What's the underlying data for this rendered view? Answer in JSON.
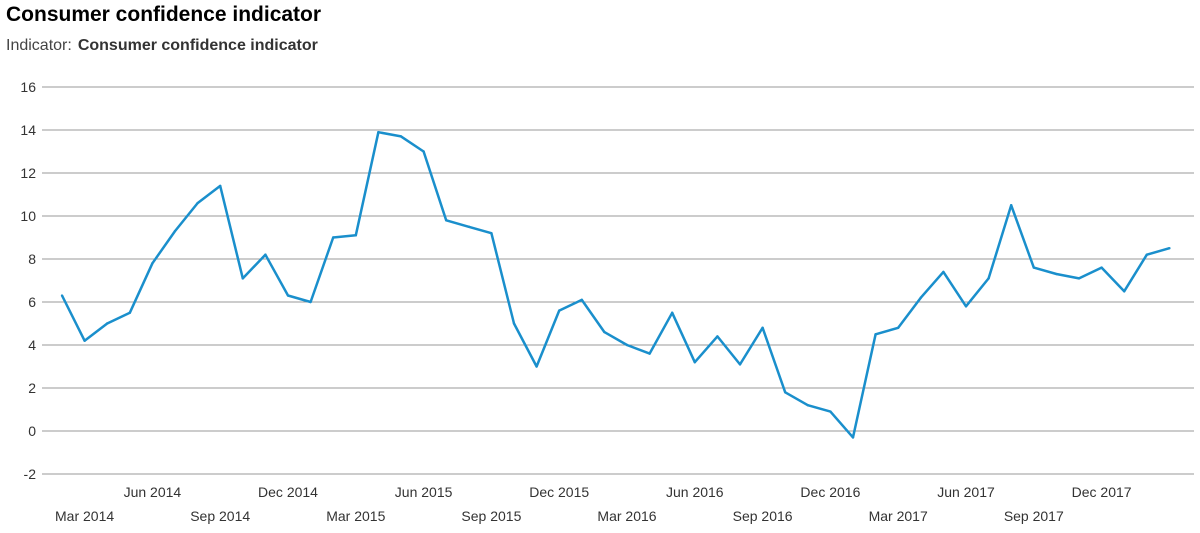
{
  "title": "Consumer confidence indicator",
  "subtitle": {
    "label": "Indicator:",
    "value": "Consumer confidence indicator"
  },
  "colors": {
    "line": "#1a8fcc",
    "grid": "#999999",
    "text": "#333333"
  },
  "chart_data": {
    "type": "line",
    "title": "Consumer confidence indicator",
    "xlabel": "",
    "ylabel": "",
    "ylim": [
      -2,
      16
    ],
    "yticks": [
      -2,
      0,
      2,
      4,
      6,
      8,
      10,
      12,
      14,
      16
    ],
    "grid": true,
    "x": [
      "2014-02",
      "2014-03",
      "2014-04",
      "2014-05",
      "2014-06",
      "2014-07",
      "2014-08",
      "2014-09",
      "2014-10",
      "2014-11",
      "2014-12",
      "2015-01",
      "2015-02",
      "2015-03",
      "2015-04",
      "2015-05",
      "2015-06",
      "2015-07",
      "2015-08",
      "2015-09",
      "2015-10",
      "2015-11",
      "2015-12",
      "2016-01",
      "2016-02",
      "2016-03",
      "2016-04",
      "2016-05",
      "2016-06",
      "2016-07",
      "2016-08",
      "2016-09",
      "2016-10",
      "2016-11",
      "2016-12",
      "2017-01",
      "2017-02",
      "2017-03",
      "2017-04",
      "2017-05",
      "2017-06",
      "2017-07",
      "2017-08",
      "2017-09",
      "2017-10",
      "2017-11",
      "2017-12",
      "2018-01",
      "2018-02",
      "2018-03"
    ],
    "series": [
      {
        "values": [
          6.3,
          4.2,
          5.0,
          5.5,
          7.8,
          9.3,
          10.6,
          11.4,
          7.1,
          8.2,
          6.3,
          6.0,
          9.0,
          9.1,
          13.9,
          13.7,
          13.0,
          9.8,
          9.5,
          9.2,
          5.0,
          3.0,
          5.6,
          6.1,
          4.6,
          4.0,
          3.6,
          5.5,
          3.2,
          4.4,
          3.1,
          4.8,
          1.8,
          1.2,
          0.9,
          -0.3,
          4.5,
          4.8,
          6.2,
          7.4,
          5.8,
          7.1,
          10.5,
          7.6,
          7.3,
          7.1,
          7.6,
          6.5,
          8.2,
          8.5
        ]
      }
    ],
    "xticks": [
      {
        "label": "Mar 2014",
        "at": "2014-03",
        "row": 2
      },
      {
        "label": "Jun 2014",
        "at": "2014-06",
        "row": 1
      },
      {
        "label": "Sep 2014",
        "at": "2014-09",
        "row": 2
      },
      {
        "label": "Dec 2014",
        "at": "2014-12",
        "row": 1
      },
      {
        "label": "Mar 2015",
        "at": "2015-03",
        "row": 2
      },
      {
        "label": "Jun 2015",
        "at": "2015-06",
        "row": 1
      },
      {
        "label": "Sep 2015",
        "at": "2015-09",
        "row": 2
      },
      {
        "label": "Dec 2015",
        "at": "2015-12",
        "row": 1
      },
      {
        "label": "Mar 2016",
        "at": "2016-03",
        "row": 2
      },
      {
        "label": "Jun 2016",
        "at": "2016-06",
        "row": 1
      },
      {
        "label": "Sep 2016",
        "at": "2016-09",
        "row": 2
      },
      {
        "label": "Dec 2016",
        "at": "2016-12",
        "row": 1
      },
      {
        "label": "Mar 2017",
        "at": "2017-03",
        "row": 2
      },
      {
        "label": "Jun 2017",
        "at": "2017-06",
        "row": 1
      },
      {
        "label": "Sep 2017",
        "at": "2017-09",
        "row": 2
      },
      {
        "label": "Dec 2017",
        "at": "2017-12",
        "row": 1
      }
    ]
  }
}
